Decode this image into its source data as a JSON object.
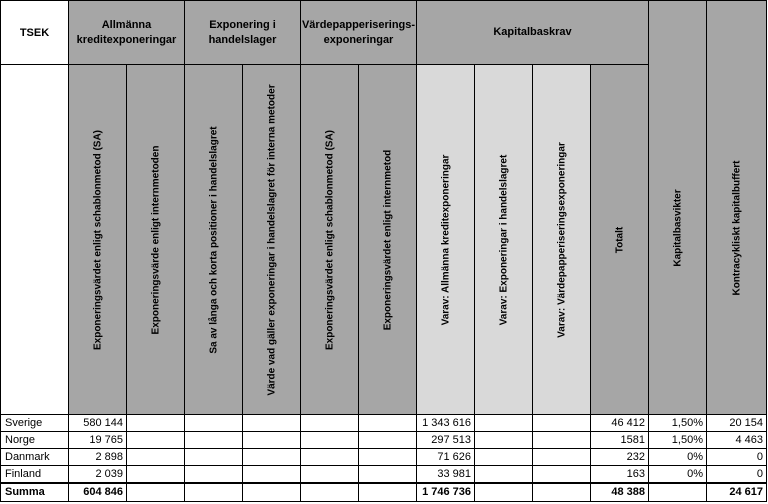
{
  "corner": "TSEK",
  "groups": {
    "allmanna": "Allmänna kreditexponeringar",
    "handelslager": "Exponering i handelslager",
    "vardepapper": "Värdepapperiserings-exponeringar",
    "kapitalbaskrav": "Kapitalbaskrav"
  },
  "columns": [
    "Exponeringsvärdet enligt schablonmetod (SA)",
    "Exponeringsvärde enligt internmetoden",
    "Sa av långa och korta positioner i handelslagret",
    "Värde vad gäller exponeringar i handelslagret för interna metoder",
    "Exponeringsvärdet enligt schablonmetod (SA)",
    "Exponeringsvärdet enligt internmetod",
    "Varav: Allmänna kreditexponeringar",
    "Varav: Exponeringar i handelslagret",
    "Varav: Värdepapperiseringsexponeringar",
    "Totalt",
    "Kapitalbasvikter",
    "Kontracykliskt kapitalbuffert"
  ],
  "rows": [
    {
      "label": "Sverige",
      "v": [
        "580 144",
        "",
        "",
        "",
        "",
        "",
        "1 343 616",
        "",
        "",
        "46 412",
        "1,50%",
        "20 154"
      ]
    },
    {
      "label": "Norge",
      "v": [
        "19 765",
        "",
        "",
        "",
        "",
        "",
        "297 513",
        "",
        "",
        "1581",
        "1,50%",
        "4 463"
      ]
    },
    {
      "label": "Danmark",
      "v": [
        "2 898",
        "",
        "",
        "",
        "",
        "",
        "71 626",
        "",
        "",
        "232",
        "0%",
        "0"
      ]
    },
    {
      "label": "Finland",
      "v": [
        "2 039",
        "",
        "",
        "",
        "",
        "",
        "33 981",
        "",
        "",
        "163",
        "0%",
        "0"
      ]
    }
  ],
  "summa": {
    "label": "Summa",
    "v": [
      "604 846",
      "",
      "",
      "",
      "",
      "",
      "1 746 736",
      "",
      "",
      "48 388",
      "",
      "24 617"
    ]
  }
}
